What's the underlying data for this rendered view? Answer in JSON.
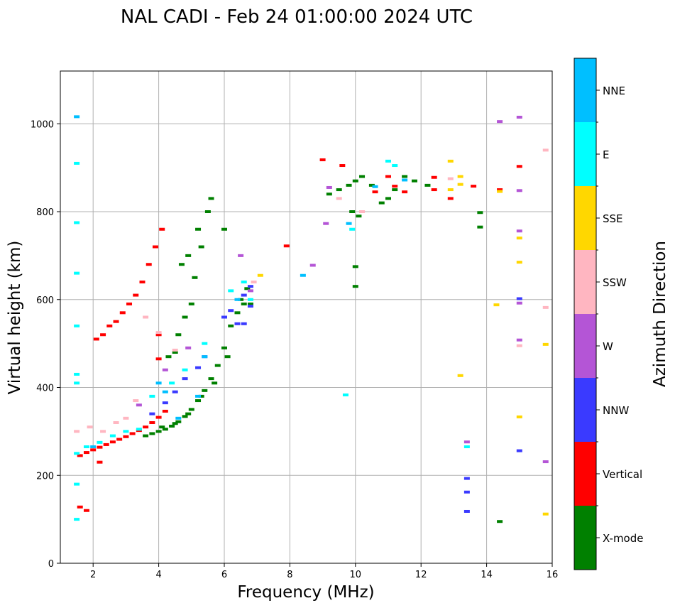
{
  "chart_data": {
    "type": "scatter",
    "title": "NAL CADI - Feb 24 01:00:00 2024 UTC",
    "xlabel": "Frequency (MHz)",
    "ylabel": "Virtual height (km)",
    "xlim": [
      1,
      16
    ],
    "ylim": [
      0,
      1120
    ],
    "xticks": [
      2,
      4,
      6,
      8,
      10,
      12,
      14,
      16
    ],
    "yticks": [
      0,
      200,
      400,
      600,
      800,
      1000
    ],
    "grid": true,
    "colorbar": {
      "label": "Azimuth Direction",
      "categories": [
        "X-mode",
        "Vertical",
        "NNW",
        "W",
        "SSW",
        "SSE",
        "E",
        "NNE"
      ],
      "colors": [
        "#008000",
        "#ff0000",
        "#3a3aff",
        "#b455d6",
        "#ffb6c1",
        "#ffd700",
        "#00ffff",
        "#00bfff"
      ]
    },
    "series": [
      {
        "name": "X-mode",
        "points": [
          [
            3.6,
            290
          ],
          [
            3.8,
            295
          ],
          [
            4.0,
            300
          ],
          [
            4.2,
            305
          ],
          [
            4.4,
            312
          ],
          [
            4.6,
            322
          ],
          [
            4.8,
            334
          ],
          [
            5.0,
            350
          ],
          [
            5.2,
            370
          ],
          [
            5.4,
            393
          ],
          [
            5.6,
            420
          ],
          [
            5.8,
            450
          ],
          [
            6.0,
            490
          ],
          [
            6.2,
            540
          ],
          [
            6.4,
            570
          ],
          [
            6.6,
            590
          ],
          [
            4.1,
            310
          ],
          [
            4.5,
            318
          ],
          [
            4.9,
            340
          ],
          [
            5.3,
            380
          ],
          [
            5.7,
            410
          ],
          [
            6.1,
            470
          ],
          [
            6.5,
            600
          ],
          [
            6.7,
            625
          ],
          [
            4.3,
            470
          ],
          [
            4.5,
            480
          ],
          [
            4.6,
            520
          ],
          [
            4.8,
            560
          ],
          [
            5.0,
            590
          ],
          [
            5.1,
            650
          ],
          [
            5.3,
            720
          ],
          [
            5.5,
            800
          ],
          [
            5.6,
            830
          ],
          [
            5.2,
            760
          ],
          [
            4.9,
            700
          ],
          [
            4.7,
            680
          ],
          [
            6.0,
            760
          ],
          [
            6.8,
            590
          ],
          [
            9.2,
            840
          ],
          [
            9.5,
            850
          ],
          [
            9.8,
            860
          ],
          [
            10.0,
            870
          ],
          [
            10.2,
            880
          ],
          [
            10.5,
            860
          ],
          [
            10.8,
            820
          ],
          [
            11.0,
            830
          ],
          [
            11.2,
            850
          ],
          [
            11.5,
            880
          ],
          [
            11.8,
            870
          ],
          [
            12.2,
            860
          ],
          [
            10.1,
            790
          ],
          [
            9.9,
            800
          ],
          [
            10.0,
            630
          ],
          [
            10.0,
            675
          ],
          [
            13.8,
            798
          ],
          [
            13.8,
            765
          ],
          [
            14.4,
            95
          ]
        ]
      },
      {
        "name": "Vertical",
        "points": [
          [
            1.6,
            245
          ],
          [
            1.8,
            252
          ],
          [
            2.0,
            258
          ],
          [
            2.2,
            264
          ],
          [
            2.4,
            270
          ],
          [
            2.6,
            276
          ],
          [
            2.8,
            282
          ],
          [
            3.0,
            288
          ],
          [
            3.2,
            295
          ],
          [
            3.4,
            302
          ],
          [
            3.6,
            310
          ],
          [
            3.8,
            320
          ],
          [
            4.0,
            332
          ],
          [
            4.2,
            346
          ],
          [
            2.1,
            510
          ],
          [
            2.3,
            520
          ],
          [
            2.5,
            540
          ],
          [
            2.7,
            550
          ],
          [
            2.9,
            570
          ],
          [
            3.1,
            590
          ],
          [
            3.3,
            610
          ],
          [
            3.5,
            640
          ],
          [
            3.7,
            680
          ],
          [
            3.9,
            720
          ],
          [
            4.1,
            760
          ],
          [
            1.6,
            128
          ],
          [
            1.8,
            120
          ],
          [
            2.2,
            230
          ],
          [
            4.0,
            520
          ],
          [
            4.0,
            465
          ],
          [
            7.9,
            722
          ],
          [
            9.0,
            918
          ],
          [
            9.6,
            905
          ],
          [
            10.6,
            845
          ],
          [
            11.0,
            880
          ],
          [
            11.2,
            858
          ],
          [
            11.5,
            845
          ],
          [
            12.4,
            878
          ],
          [
            12.4,
            850
          ],
          [
            12.9,
            830
          ],
          [
            13.6,
            858
          ],
          [
            14.4,
            850
          ],
          [
            15.0,
            903
          ]
        ]
      },
      {
        "name": "NNW",
        "points": [
          [
            3.8,
            340
          ],
          [
            4.2,
            365
          ],
          [
            4.5,
            390
          ],
          [
            4.8,
            420
          ],
          [
            5.2,
            445
          ],
          [
            5.4,
            470
          ],
          [
            6.0,
            560
          ],
          [
            6.2,
            575
          ],
          [
            6.4,
            545
          ],
          [
            6.6,
            545
          ],
          [
            6.8,
            585
          ],
          [
            6.6,
            610
          ],
          [
            6.8,
            630
          ],
          [
            13.4,
            193
          ],
          [
            13.4,
            162
          ],
          [
            13.4,
            118
          ],
          [
            15.0,
            256
          ],
          [
            15.0,
            602
          ]
        ]
      },
      {
        "name": "W",
        "points": [
          [
            3.4,
            360
          ],
          [
            4.2,
            440
          ],
          [
            4.9,
            490
          ],
          [
            6.5,
            700
          ],
          [
            6.8,
            620
          ],
          [
            8.7,
            678
          ],
          [
            9.2,
            855
          ],
          [
            9.1,
            773
          ],
          [
            14.4,
            1005
          ],
          [
            15.0,
            1015
          ],
          [
            15.0,
            848
          ],
          [
            15.0,
            756
          ],
          [
            15.0,
            508
          ],
          [
            15.0,
            592
          ],
          [
            13.4,
            276
          ],
          [
            15.8,
            231
          ]
        ]
      },
      {
        "name": "SSW",
        "points": [
          [
            1.5,
            300
          ],
          [
            1.9,
            310
          ],
          [
            2.3,
            300
          ],
          [
            2.7,
            320
          ],
          [
            3.0,
            330
          ],
          [
            3.3,
            370
          ],
          [
            3.6,
            560
          ],
          [
            4.0,
            525
          ],
          [
            4.5,
            485
          ],
          [
            6.9,
            640
          ],
          [
            9.5,
            830
          ],
          [
            10.2,
            800
          ],
          [
            12.9,
            875
          ],
          [
            15.8,
            940
          ],
          [
            15.8,
            582
          ],
          [
            15.0,
            495
          ]
        ]
      },
      {
        "name": "SSE",
        "points": [
          [
            7.1,
            655
          ],
          [
            12.9,
            915
          ],
          [
            12.9,
            850
          ],
          [
            13.2,
            880
          ],
          [
            13.2,
            862
          ],
          [
            13.2,
            427
          ],
          [
            14.3,
            588
          ],
          [
            14.4,
            846
          ],
          [
            15.0,
            740
          ],
          [
            15.0,
            685
          ],
          [
            15.0,
            333
          ],
          [
            15.8,
            498
          ],
          [
            15.8,
            112
          ]
        ]
      },
      {
        "name": "E",
        "points": [
          [
            1.5,
            910
          ],
          [
            1.5,
            775
          ],
          [
            1.5,
            660
          ],
          [
            1.5,
            540
          ],
          [
            1.5,
            430
          ],
          [
            1.5,
            410
          ],
          [
            1.5,
            180
          ],
          [
            1.5,
            100
          ],
          [
            1.5,
            250
          ],
          [
            1.8,
            265
          ],
          [
            2.2,
            275
          ],
          [
            2.6,
            290
          ],
          [
            3.0,
            300
          ],
          [
            3.4,
            305
          ],
          [
            3.8,
            380
          ],
          [
            4.4,
            410
          ],
          [
            4.8,
            440
          ],
          [
            5.4,
            500
          ],
          [
            6.2,
            620
          ],
          [
            6.6,
            640
          ],
          [
            6.8,
            600
          ],
          [
            9.7,
            383
          ],
          [
            9.9,
            760
          ],
          [
            11.0,
            915
          ],
          [
            11.2,
            905
          ],
          [
            13.4,
            265
          ]
        ]
      },
      {
        "name": "NNE",
        "points": [
          [
            1.5,
            1016
          ],
          [
            2.0,
            265
          ],
          [
            4.0,
            410
          ],
          [
            4.2,
            390
          ],
          [
            4.6,
            330
          ],
          [
            5.2,
            380
          ],
          [
            5.4,
            470
          ],
          [
            6.4,
            600
          ],
          [
            8.4,
            655
          ],
          [
            9.8,
            773
          ],
          [
            10.6,
            857
          ],
          [
            11.5,
            872
          ]
        ]
      }
    ]
  }
}
